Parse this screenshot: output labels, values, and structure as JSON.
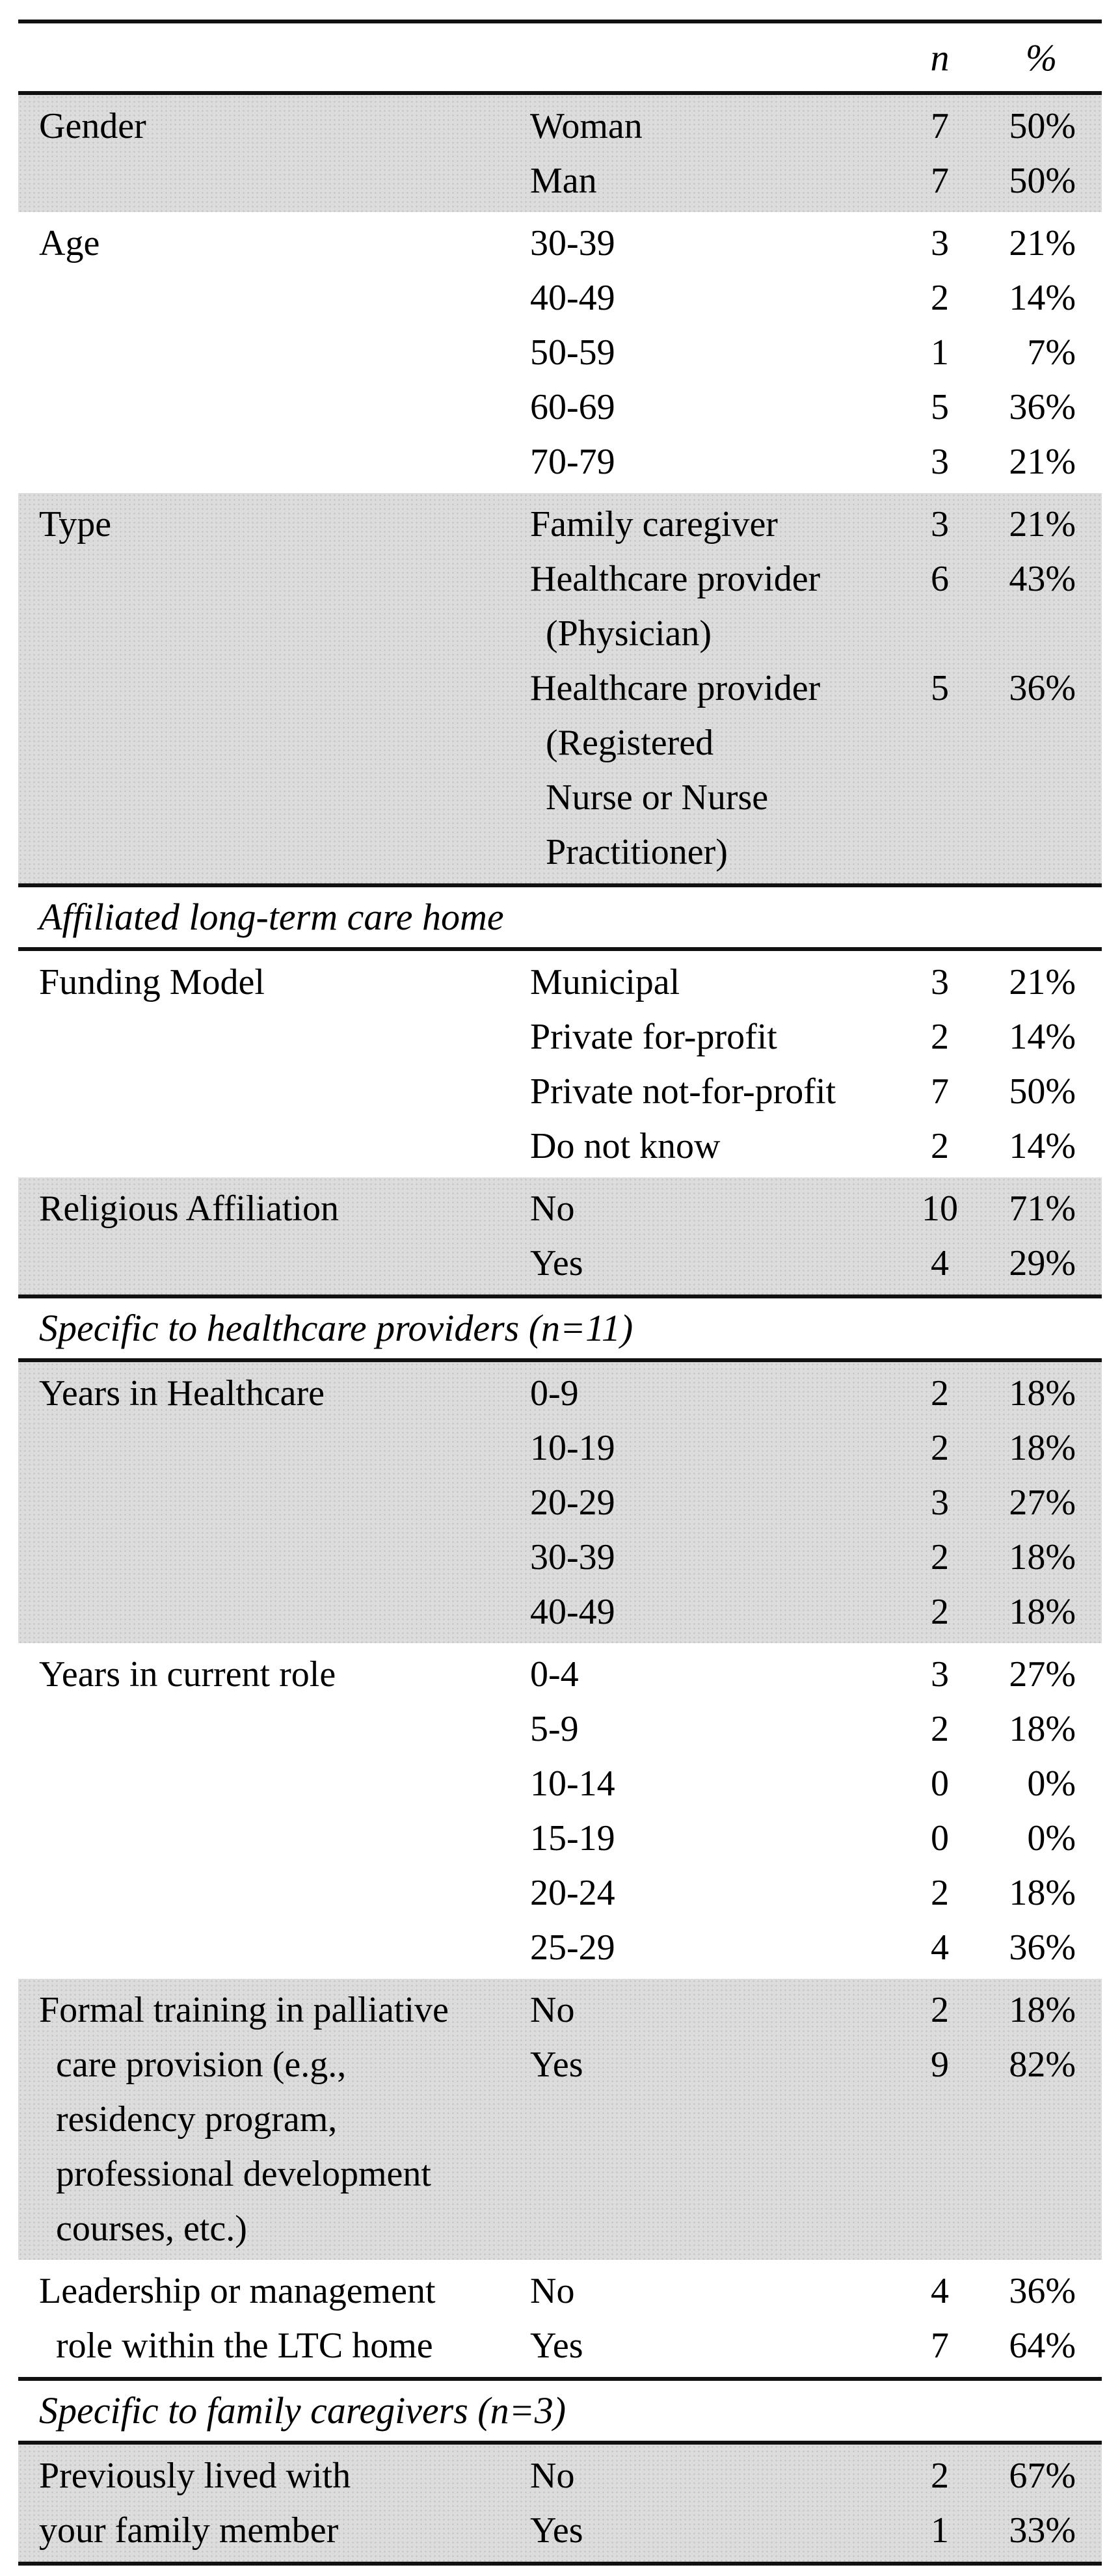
{
  "colors": {
    "shaded_band": "#dcdcdc",
    "rule": "#111111",
    "text": "#000000",
    "page_background": "#ffffff"
  },
  "table": {
    "columns": {
      "n_label": "n",
      "pct_label": "%"
    },
    "blocks": [
      {
        "type": "band",
        "shaded": true,
        "category": [
          "Gender"
        ],
        "rows": [
          {
            "label": [
              "Woman"
            ],
            "n": "7",
            "pct": "50%"
          },
          {
            "label": [
              "Man"
            ],
            "n": "7",
            "pct": "50%"
          }
        ]
      },
      {
        "type": "band",
        "shaded": false,
        "category": [
          "Age"
        ],
        "rows": [
          {
            "label": [
              "30-39"
            ],
            "n": "3",
            "pct": "21%"
          },
          {
            "label": [
              "40-49"
            ],
            "n": "2",
            "pct": "14%"
          },
          {
            "label": [
              "50-59"
            ],
            "n": "1",
            "pct": "7%"
          },
          {
            "label": [
              "60-69"
            ],
            "n": "5",
            "pct": "36%"
          },
          {
            "label": [
              "70-79"
            ],
            "n": "3",
            "pct": "21%"
          }
        ]
      },
      {
        "type": "band",
        "shaded": true,
        "rule_after": true,
        "category": [
          "Type"
        ],
        "rows": [
          {
            "label": [
              "Family caregiver"
            ],
            "n": "3",
            "pct": "21%"
          },
          {
            "label": [
              "Healthcare provider",
              "(Physician)"
            ],
            "n": "6",
            "pct": "43%"
          },
          {
            "label": [
              "Healthcare provider",
              "(Registered",
              "Nurse or Nurse",
              "Practitioner)"
            ],
            "n": "5",
            "pct": "36%"
          }
        ]
      },
      {
        "type": "section",
        "rule_after": true,
        "text": "Affiliated long-term care home"
      },
      {
        "type": "band",
        "shaded": false,
        "category": [
          "Funding Model"
        ],
        "rows": [
          {
            "label": [
              "Municipal"
            ],
            "n": "3",
            "pct": "21%"
          },
          {
            "label": [
              "Private for-profit"
            ],
            "n": "2",
            "pct": "14%"
          },
          {
            "label": [
              "Private not-for-profit"
            ],
            "n": "7",
            "pct": "50%"
          },
          {
            "label": [
              "Do not know"
            ],
            "n": "2",
            "pct": "14%"
          }
        ]
      },
      {
        "type": "band",
        "shaded": true,
        "rule_after": true,
        "category": [
          "Religious Affiliation"
        ],
        "rows": [
          {
            "label": [
              "No"
            ],
            "n": "10",
            "pct": "71%"
          },
          {
            "label": [
              "Yes"
            ],
            "n": "4",
            "pct": "29%"
          }
        ]
      },
      {
        "type": "section",
        "rule_after": true,
        "text": "Specific to healthcare providers (n=11)"
      },
      {
        "type": "band",
        "shaded": true,
        "category": [
          "Years in Healthcare"
        ],
        "rows": [
          {
            "label": [
              "0-9"
            ],
            "n": "2",
            "pct": "18%"
          },
          {
            "label": [
              "10-19"
            ],
            "n": "2",
            "pct": "18%"
          },
          {
            "label": [
              "20-29"
            ],
            "n": "3",
            "pct": "27%"
          },
          {
            "label": [
              "30-39"
            ],
            "n": "2",
            "pct": "18%"
          },
          {
            "label": [
              "40-49"
            ],
            "n": "2",
            "pct": "18%"
          }
        ]
      },
      {
        "type": "band",
        "shaded": false,
        "category": [
          "Years in current role"
        ],
        "rows": [
          {
            "label": [
              "0-4"
            ],
            "n": "3",
            "pct": "27%"
          },
          {
            "label": [
              "5-9"
            ],
            "n": "2",
            "pct": "18%"
          },
          {
            "label": [
              "10-14"
            ],
            "n": "0",
            "pct": "0%"
          },
          {
            "label": [
              "15-19"
            ],
            "n": "0",
            "pct": "0%"
          },
          {
            "label": [
              "20-24"
            ],
            "n": "2",
            "pct": "18%"
          },
          {
            "label": [
              "25-29"
            ],
            "n": "4",
            "pct": "36%"
          }
        ]
      },
      {
        "type": "band",
        "shaded": true,
        "category": [
          "Formal training in palliative",
          "care provision (e.g.,",
          "residency program,",
          "professional development",
          "courses, etc.)"
        ],
        "rows": [
          {
            "label": [
              "No"
            ],
            "n": "2",
            "pct": "18%"
          },
          {
            "label": [
              "Yes"
            ],
            "n": "9",
            "pct": "82%"
          }
        ]
      },
      {
        "type": "band",
        "shaded": false,
        "rule_after": true,
        "category": [
          "Leadership or management",
          "role within the LTC home"
        ],
        "rows": [
          {
            "label": [
              "No"
            ],
            "n": "4",
            "pct": "36%"
          },
          {
            "label": [
              "Yes"
            ],
            "n": "7",
            "pct": "64%"
          }
        ]
      },
      {
        "type": "section",
        "rule_after": true,
        "text": "Specific to family caregivers (n=3)"
      },
      {
        "type": "band",
        "shaded": true,
        "rule_after": true,
        "indent_cont": false,
        "category": [
          "Previously lived with",
          "your family member"
        ],
        "rows": [
          {
            "label": [
              "No"
            ],
            "n": "2",
            "pct": "67%"
          },
          {
            "label": [
              "Yes"
            ],
            "n": "1",
            "pct": "33%"
          }
        ]
      }
    ]
  }
}
